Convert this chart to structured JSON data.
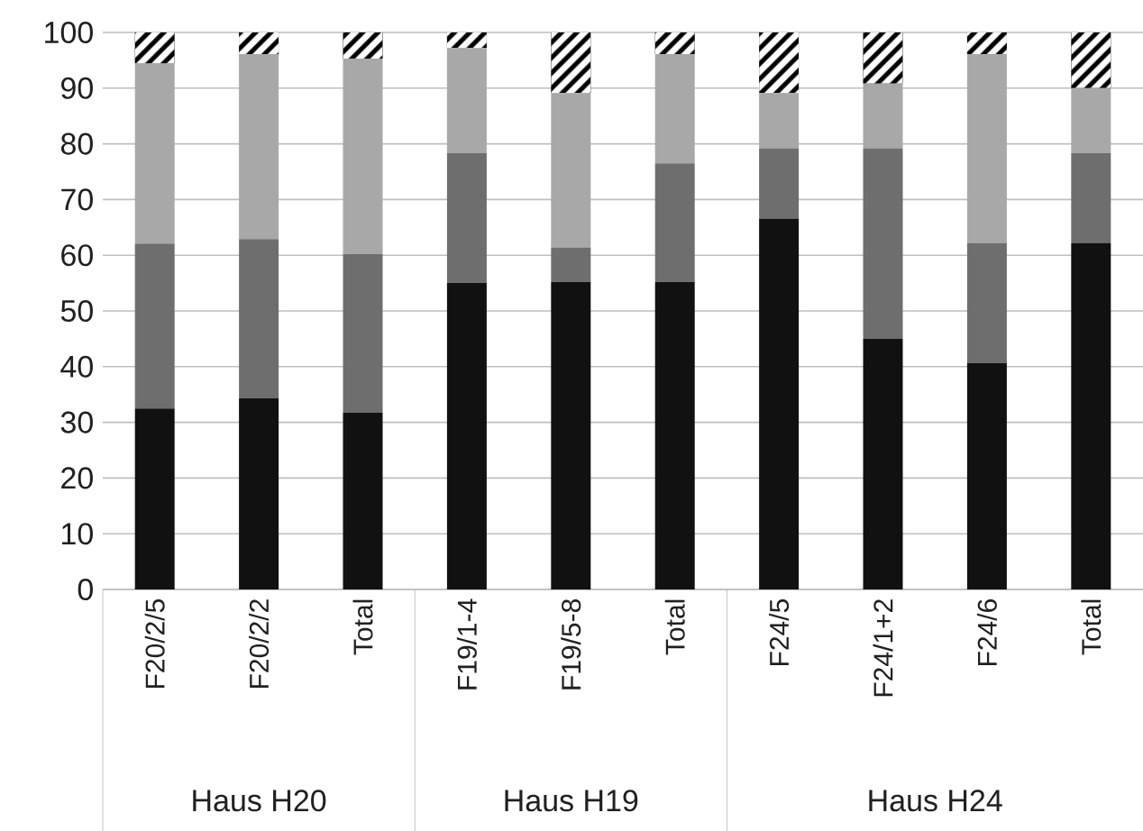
{
  "chart_data": {
    "type": "bar",
    "stacked": true,
    "categories": [
      "F20/2/5",
      "F20/2/2",
      "Total",
      "F19/1-4",
      "F19/5-8",
      "Total",
      "F24/5",
      "F24/1+2",
      "F24/6",
      "Total"
    ],
    "series": [
      {
        "color": "#111111",
        "values": [
          32.5,
          34.3,
          31.7,
          55.0,
          55.2,
          55.2,
          66.6,
          45.0,
          40.6,
          62.2
        ]
      },
      {
        "color": "#6e6e6e",
        "values": [
          29.6,
          28.6,
          28.5,
          23.3,
          6.2,
          21.3,
          12.6,
          34.2,
          21.6,
          16.1
        ]
      },
      {
        "color": "#a8a8a8",
        "values": [
          32.3,
          33.2,
          35.1,
          18.9,
          27.7,
          19.6,
          9.9,
          11.6,
          33.9,
          11.7
        ]
      },
      {
        "color": "#000000",
        "values": [
          5.6,
          3.9,
          4.7,
          2.8,
          10.9,
          3.9,
          10.9,
          9.2,
          3.9,
          10.0
        ]
      }
    ],
    "ylim": [
      0,
      100
    ],
    "yticks": [
      0,
      10,
      20,
      30,
      40,
      50,
      60,
      70,
      80,
      90,
      100
    ],
    "grid": "y",
    "annotations": [
      "Haus H20",
      "Haus H19",
      "Haus H24"
    ]
  }
}
